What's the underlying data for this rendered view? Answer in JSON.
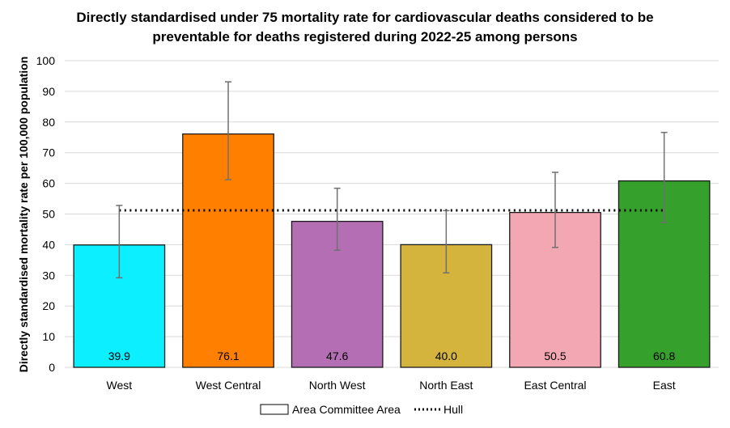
{
  "chart_data": {
    "type": "bar",
    "title_lines": [
      "Directly standardised under 75 mortality rate for cardiovascular deaths considered to be",
      "preventable for deaths registered during 2022-25 among persons"
    ],
    "xlabel": "",
    "ylabel": "Directly standardised mortality rate per 100,000 population",
    "ylim": [
      0,
      100
    ],
    "yticks": [
      0,
      10,
      20,
      30,
      40,
      50,
      60,
      70,
      80,
      90,
      100
    ],
    "grid": true,
    "legend_position": "bottom",
    "categories": [
      "West",
      "West Central",
      "North West",
      "North East",
      "East Central",
      "East"
    ],
    "series": [
      {
        "name": "Area Committee Area",
        "values": [
          39.9,
          76.1,
          47.6,
          40.0,
          50.5,
          60.8
        ],
        "data_labels": [
          "39.9",
          "76.1",
          "47.6",
          "40.0",
          "50.5",
          "60.8"
        ],
        "lower_ci": [
          29.2,
          61.2,
          38.2,
          30.8,
          39.1,
          47.2
        ],
        "upper_ci": [
          52.8,
          93.1,
          58.4,
          51.1,
          63.6,
          76.6
        ],
        "colors": [
          "#0BEFFF",
          "#FF8000",
          "#B36EB4",
          "#D4B43C",
          "#F2A7B2",
          "#36A02C"
        ]
      },
      {
        "name": "Hull",
        "type": "line",
        "value": 51.2,
        "color": "#000000"
      }
    ]
  }
}
